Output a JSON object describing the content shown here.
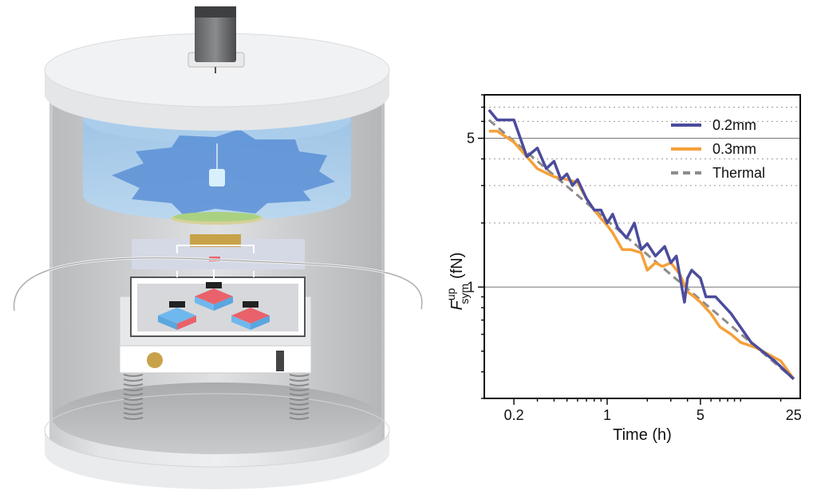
{
  "illustration": {
    "subject": "levitated-force-sensor-apparatus",
    "components": [
      "vacuum-chamber",
      "motor",
      "magnet-array",
      "spring-suspension",
      "cable-loop"
    ],
    "colors": {
      "chamber": "#e6e8ea",
      "glass": "#8fbfe6",
      "disk": "#5b8fd6",
      "magnet_red": "#e9626b",
      "magnet_blue": "#6fb8ee",
      "gold": "#c8a24a"
    }
  },
  "chart_data": {
    "type": "line",
    "xscale": "log",
    "yscale": "log",
    "xlabel": "Time (h)",
    "ylabel_main": "F",
    "ylabel_sup": "up",
    "ylabel_sub": "sym",
    "ylabel_unit": "(fN)",
    "xlim": [
      0.12,
      28
    ],
    "ylim": [
      0.3,
      8
    ],
    "xticks": [
      0.2,
      1,
      5,
      25
    ],
    "xtick_labels": [
      "0.2",
      "1",
      "5",
      "25"
    ],
    "yticks": [
      1,
      5
    ],
    "ytick_labels": [
      "1",
      "5"
    ],
    "grid_major_y": [
      1,
      5
    ],
    "grid_minor_y": [
      2,
      3,
      4,
      6,
      7
    ],
    "legend_position": "top-right",
    "series": [
      {
        "name": "0.2mm",
        "color": "#4b4c9c",
        "style": "solid",
        "x": [
          0.13,
          0.15,
          0.2,
          0.25,
          0.3,
          0.35,
          0.4,
          0.45,
          0.5,
          0.55,
          0.6,
          0.7,
          0.8,
          0.9,
          1.0,
          1.1,
          1.2,
          1.4,
          1.6,
          1.8,
          2.0,
          2.3,
          2.7,
          3.0,
          3.3,
          3.8,
          4.0,
          4.3,
          5.0,
          5.5,
          6.5,
          8.5,
          12,
          18,
          25
        ],
        "y": [
          6.8,
          6.1,
          6.1,
          4.1,
          4.5,
          3.6,
          3.9,
          3.2,
          3.4,
          3.0,
          3.2,
          2.6,
          2.3,
          2.3,
          2.0,
          2.2,
          1.9,
          1.7,
          2.0,
          1.5,
          1.6,
          1.4,
          1.55,
          1.3,
          1.4,
          0.85,
          1.1,
          1.2,
          1.1,
          0.9,
          0.9,
          0.75,
          0.55,
          0.45,
          0.37
        ]
      },
      {
        "name": "0.3mm",
        "color": "#f4a13a",
        "style": "solid",
        "x": [
          0.13,
          0.15,
          0.2,
          0.25,
          0.3,
          0.4,
          0.5,
          0.6,
          0.7,
          0.8,
          0.9,
          1.0,
          1.1,
          1.3,
          1.5,
          1.8,
          2.0,
          2.3,
          2.6,
          3.0,
          3.5,
          4.0,
          4.5,
          5.0,
          6.0,
          7.0,
          8.5,
          10,
          13,
          20,
          25
        ],
        "y": [
          5.4,
          5.4,
          4.8,
          4.1,
          3.6,
          3.3,
          3.2,
          3.1,
          2.6,
          2.3,
          2.1,
          1.95,
          1.8,
          1.5,
          1.5,
          1.45,
          1.2,
          1.3,
          1.25,
          1.3,
          1.15,
          0.95,
          0.9,
          0.85,
          0.75,
          0.65,
          0.6,
          0.55,
          0.52,
          0.45,
          0.37
        ]
      },
      {
        "name": "Thermal",
        "color": "#8c8c8c",
        "style": "dashed",
        "x": [
          0.13,
          25
        ],
        "y": [
          6.1,
          0.37
        ]
      }
    ]
  }
}
